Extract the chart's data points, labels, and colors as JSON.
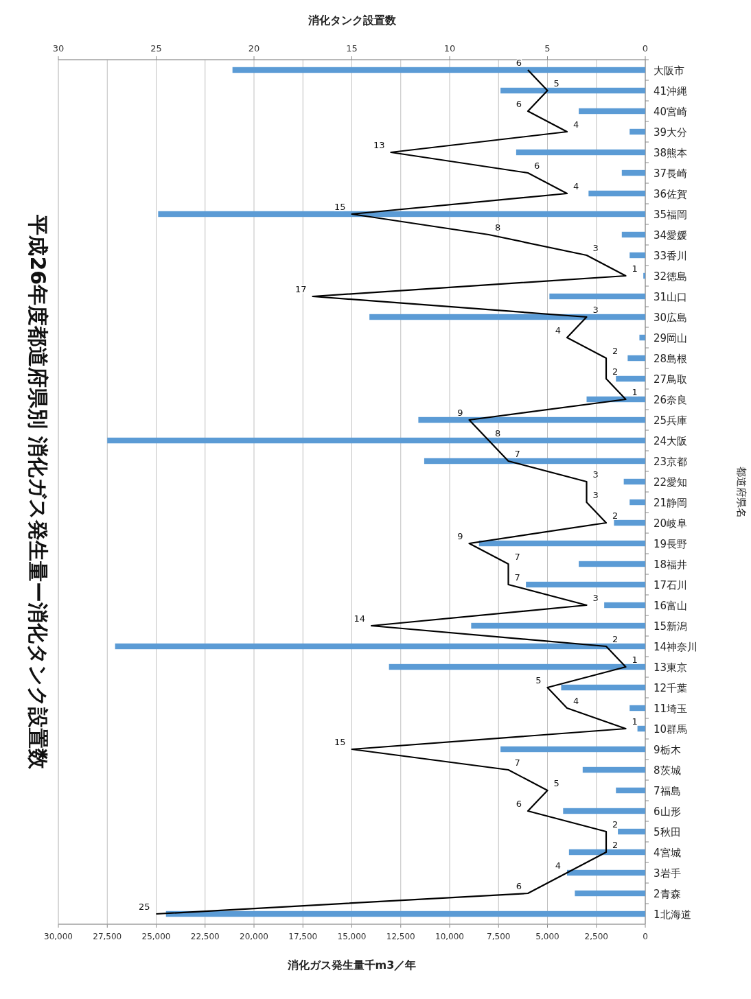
{
  "chart_data": {
    "type": "bar",
    "orientation": "horizontal",
    "title": "平成26年度都道府県別 消化ガス発生量ー消化タンク設置数",
    "ylabel": "都道府県名",
    "xlabel": "消化ガス発生量千m3／年",
    "x2label": "消化タンク設置数",
    "categories": [
      "大阪市",
      "41沖縄",
      "40宮崎",
      "39大分",
      "38熊本",
      "37長崎",
      "36佐賀",
      "35福岡",
      "34愛媛",
      "33香川",
      "32徳島",
      "31山口",
      "30広島",
      "29岡山",
      "28島根",
      "27鳥取",
      "26奈良",
      "25兵庫",
      "24大阪",
      "23京都",
      "22愛知",
      "21静岡",
      "20岐阜",
      "19長野",
      "18福井",
      "17石川",
      "16富山",
      "15新潟",
      "14神奈川",
      "13東京",
      "12千葉",
      "11埼玉",
      "10群馬",
      "9栃木",
      "8茨城",
      "7福島",
      "6山形",
      "5秋田",
      "4宮城",
      "3岩手",
      "2青森",
      "1北海道"
    ],
    "series": [
      {
        "color": "#5b9bd5",
        "values": [
          21100,
          7400,
          3400,
          800,
          6600,
          1200,
          2900,
          24900,
          1200,
          800,
          100,
          4900,
          14100,
          300,
          900,
          1500,
          3000,
          11600,
          27500,
          11300,
          1100,
          800,
          1600,
          8500,
          3400,
          6100,
          2100,
          8900,
          27100,
          13100,
          4300,
          800,
          400,
          7400,
          3200,
          1500,
          4200,
          1400,
          3900,
          4000,
          3600,
          24500
        ]
      },
      {
        "type": "line",
        "axis": "x2",
        "color": "#000000",
        "values": [
          6,
          5,
          6,
          4,
          13,
          6,
          4,
          15,
          8,
          3,
          1,
          17,
          3,
          4,
          2,
          2,
          1,
          9,
          8,
          7,
          3,
          3,
          2,
          9,
          7,
          7,
          3,
          14,
          2,
          1,
          5,
          4,
          1,
          15,
          7,
          5,
          6,
          2,
          2,
          4,
          6,
          25
        ],
        "value_labels": [
          "6",
          "5",
          "6",
          "4",
          "13",
          "6",
          "4",
          "15",
          "8",
          "3",
          "1",
          "17",
          "3",
          "4",
          "2",
          "2",
          "1",
          "9",
          "8",
          "7",
          "3",
          "3",
          "2",
          "9",
          "7",
          "7",
          "3",
          "14",
          "2",
          "1",
          "5",
          "4",
          "1",
          "15",
          "7",
          "5",
          "6",
          "2",
          "2",
          "4",
          "6",
          "25"
        ]
      }
    ],
    "xlim": [
      30000,
      0
    ],
    "xticks": [
      0,
      {
        "value": 2500,
        "label": "2,500"
      },
      {
        "value": 5000,
        "label": "5,000"
      },
      {
        "value": 7500,
        "label": "7,500"
      },
      {
        "value": 10000,
        "label": "10,000"
      },
      {
        "value": 12500,
        "label": "12,500"
      },
      {
        "value": 15000,
        "label": "15,000"
      },
      {
        "value": 17500,
        "label": "17,500"
      },
      {
        "value": 20000,
        "label": "20,000"
      },
      {
        "value": 22500,
        "label": "22,500"
      },
      {
        "value": 25000,
        "label": "25,000"
      },
      {
        "value": 27500,
        "label": "27,500"
      },
      {
        "value": 30000,
        "label": "30,000"
      }
    ],
    "x2lim": [
      30,
      0
    ],
    "x2ticks": [
      0,
      5,
      10,
      15,
      20,
      25,
      30
    ],
    "grid": "x"
  }
}
